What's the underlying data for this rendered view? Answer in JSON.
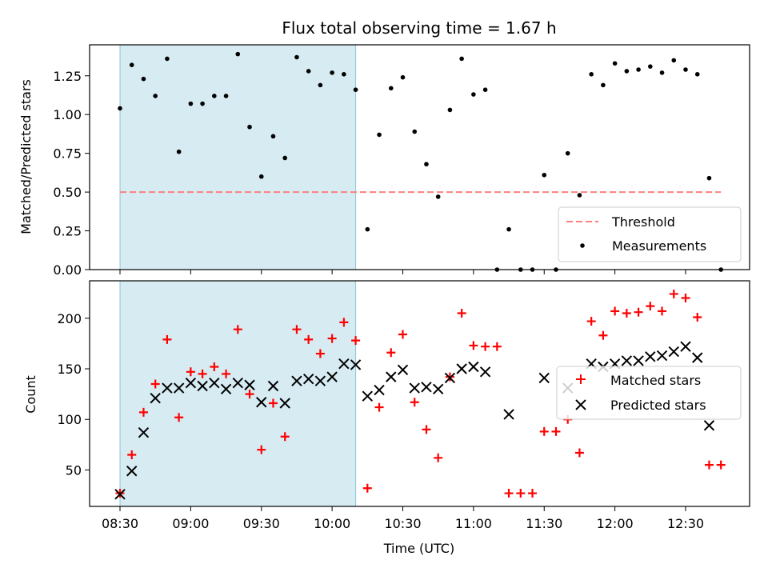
{
  "chart_data": [
    {
      "type": "scatter",
      "title": "Flux total observing time = 1.67 h",
      "xlabel": "",
      "ylabel": "Matched/Predicted stars",
      "xlim": [
        "08:30",
        "13:00"
      ],
      "ylim": [
        0,
        1.45
      ],
      "xticks": [
        "08:30",
        "09:00",
        "09:30",
        "10:00",
        "10:30",
        "11:00",
        "11:30",
        "12:00",
        "12:30"
      ],
      "yticks": [
        0.0,
        0.25,
        0.5,
        0.75,
        1.0,
        1.25
      ],
      "ytick_labels": [
        "0.00",
        "0.25",
        "0.50",
        "0.75",
        "1.00",
        "1.25"
      ],
      "shaded_span": [
        "08:30",
        "10:10"
      ],
      "shaded_color": "#add8e6",
      "threshold": {
        "name": "Threshold",
        "y": 0.5,
        "x": [
          "08:30",
          "12:45"
        ],
        "color": "#ff8080",
        "style": "dashed"
      },
      "series": [
        {
          "name": "Measurements",
          "marker": "dot",
          "color": "#000000",
          "x": [
            "08:30",
            "08:35",
            "08:40",
            "08:45",
            "08:50",
            "08:55",
            "09:00",
            "09:05",
            "09:10",
            "09:15",
            "09:20",
            "09:25",
            "09:30",
            "09:35",
            "09:40",
            "09:45",
            "09:50",
            "09:55",
            "10:00",
            "10:05",
            "10:10",
            "10:15",
            "10:20",
            "10:25",
            "10:30",
            "10:35",
            "10:40",
            "10:45",
            "10:50",
            "10:55",
            "11:00",
            "11:05",
            "11:10",
            "11:15",
            "11:20",
            "11:25",
            "11:30",
            "11:35",
            "11:40",
            "11:45",
            "11:50",
            "11:55",
            "12:00",
            "12:05",
            "12:10",
            "12:15",
            "12:20",
            "12:25",
            "12:30",
            "12:35",
            "12:40",
            "12:45"
          ],
          "values": [
            1.04,
            1.32,
            1.23,
            1.12,
            1.36,
            0.76,
            1.07,
            1.07,
            1.12,
            1.12,
            1.39,
            0.92,
            0.6,
            0.86,
            0.72,
            1.37,
            1.28,
            1.19,
            1.27,
            1.26,
            1.16,
            0.26,
            0.87,
            1.17,
            1.24,
            0.89,
            0.68,
            0.47,
            1.03,
            1.36,
            1.13,
            1.16,
            0.0,
            0.26,
            0.0,
            0.0,
            0.61,
            0.0,
            0.75,
            0.48,
            1.26,
            1.19,
            1.33,
            1.28,
            1.29,
            1.31,
            1.27,
            1.35,
            1.29,
            1.26,
            0.59,
            0.0
          ]
        }
      ],
      "legend": {
        "placement": "lower-right",
        "entries": [
          "Threshold",
          "Measurements"
        ]
      }
    },
    {
      "type": "scatter",
      "title": "",
      "xlabel": "Time (UTC)",
      "ylabel": "Count",
      "xlim": [
        "08:30",
        "13:00"
      ],
      "ylim": [
        14,
        237
      ],
      "xticks": [
        "08:30",
        "09:00",
        "09:30",
        "10:00",
        "10:30",
        "11:00",
        "11:30",
        "12:00",
        "12:30"
      ],
      "yticks": [
        50,
        100,
        150,
        200
      ],
      "ytick_labels": [
        "50",
        "100",
        "150",
        "200"
      ],
      "shaded_span": [
        "08:30",
        "10:10"
      ],
      "shaded_color": "#add8e6",
      "series": [
        {
          "name": "Matched stars",
          "marker": "plus",
          "color": "#ff0000",
          "x": [
            "08:30",
            "08:35",
            "08:40",
            "08:45",
            "08:50",
            "08:55",
            "09:00",
            "09:05",
            "09:10",
            "09:15",
            "09:20",
            "09:25",
            "09:30",
            "09:35",
            "09:40",
            "09:45",
            "09:50",
            "09:55",
            "10:00",
            "10:05",
            "10:10",
            "10:15",
            "10:20",
            "10:25",
            "10:30",
            "10:35",
            "10:40",
            "10:45",
            "10:50",
            "10:55",
            "11:00",
            "11:05",
            "11:10",
            "11:15",
            "11:20",
            "11:25",
            "11:30",
            "11:35",
            "11:40",
            "11:45",
            "11:50",
            "11:55",
            "12:00",
            "12:05",
            "12:10",
            "12:15",
            "12:20",
            "12:25",
            "12:30",
            "12:35",
            "12:40",
            "12:45"
          ],
          "values": [
            27,
            65,
            107,
            135,
            179,
            102,
            147,
            145,
            152,
            145,
            189,
            125,
            70,
            116,
            83,
            189,
            179,
            165,
            180,
            196,
            178,
            32,
            112,
            166,
            184,
            117,
            90,
            62,
            142,
            205,
            173,
            172,
            172,
            27,
            27,
            27,
            88,
            88,
            100,
            67,
            197,
            183,
            207,
            205,
            206,
            212,
            207,
            224,
            220,
            201,
            55,
            55
          ]
        },
        {
          "name": "Predicted stars",
          "marker": "x",
          "color": "#000000",
          "x": [
            "08:30",
            "08:35",
            "08:40",
            "08:45",
            "08:50",
            "08:55",
            "09:00",
            "09:05",
            "09:10",
            "09:15",
            "09:20",
            "09:25",
            "09:30",
            "09:35",
            "09:40",
            "09:45",
            "09:50",
            "09:55",
            "10:00",
            "10:05",
            "10:10",
            "10:15",
            "10:20",
            "10:25",
            "10:30",
            "10:35",
            "10:40",
            "10:45",
            "10:50",
            "10:55",
            "11:00",
            "11:05",
            "11:15",
            "11:30",
            "11:40",
            "11:50",
            "11:55",
            "12:00",
            "12:05",
            "12:10",
            "12:15",
            "12:20",
            "12:25",
            "12:30",
            "12:35",
            "12:40"
          ],
          "values": [
            26,
            49,
            87,
            121,
            131,
            131,
            136,
            133,
            136,
            130,
            136,
            134,
            117,
            133,
            116,
            138,
            140,
            138,
            142,
            155,
            154,
            123,
            129,
            142,
            149,
            131,
            132,
            130,
            141,
            150,
            152,
            147,
            105,
            141,
            131,
            155,
            152,
            155,
            158,
            158,
            162,
            163,
            167,
            172,
            161,
            94
          ]
        }
      ],
      "legend": {
        "placement": "right",
        "entries": [
          "Matched stars",
          "Predicted stars"
        ]
      }
    }
  ]
}
